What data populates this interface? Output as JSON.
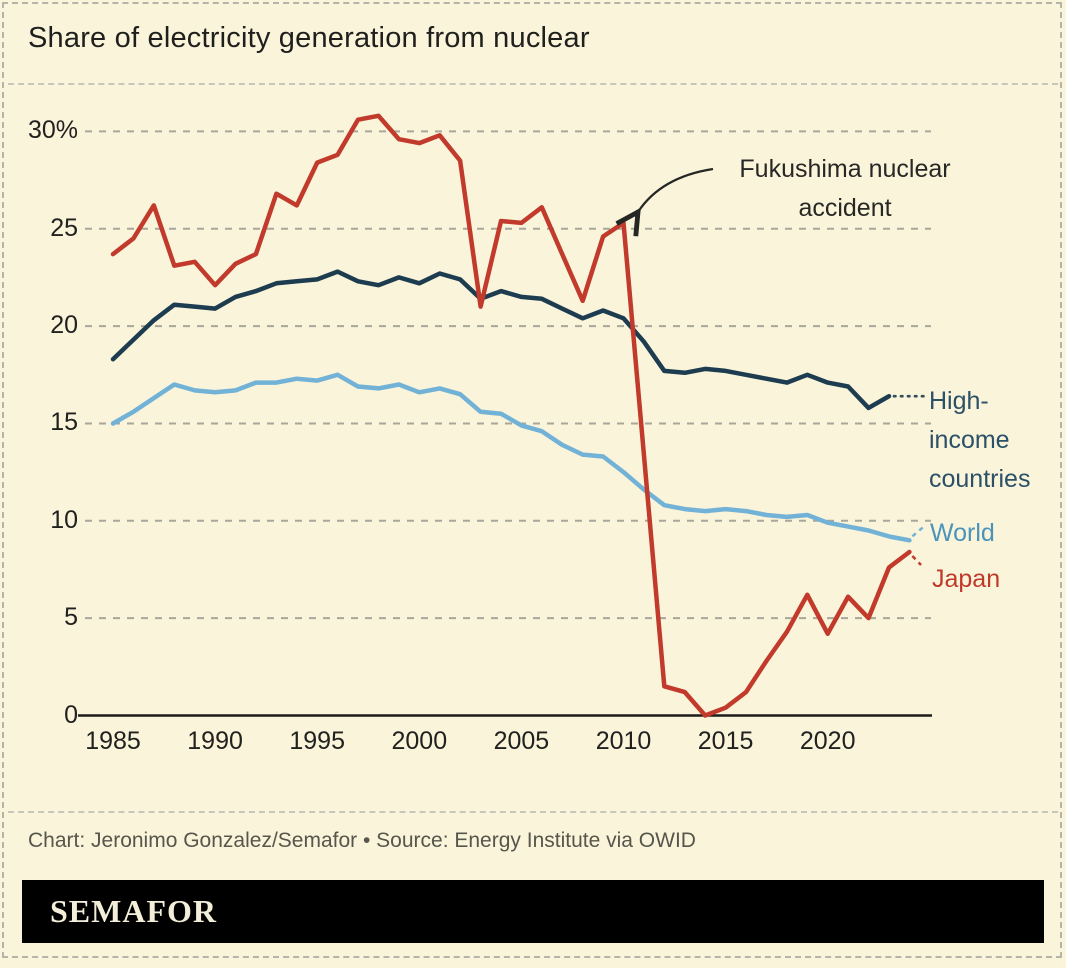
{
  "page": {
    "title": "Share of electricity generation from nuclear",
    "credit": "Chart: Jeronimo Gonzalez/Semafor • Source: Energy Institute via OWID",
    "logo_text": "SEMAFOR",
    "background_color": "#f9f4da",
    "logo_bar_color": "#000000"
  },
  "annotation": {
    "line1": "Fukushima nuclear",
    "line2": "accident"
  },
  "series_labels": {
    "high_income_line1": "High-",
    "high_income_line2": "income",
    "high_income_line3": "countries",
    "world": "World",
    "japan": "Japan"
  },
  "chart_data": {
    "type": "line",
    "title": "Share of electricity generation from nuclear",
    "xlabel": "",
    "ylabel": "",
    "xlim": [
      1985,
      2024.8
    ],
    "ylim": [
      0,
      31.8
    ],
    "grid": "horizontal-dashed",
    "legend_position": "right-of-line-ends",
    "x_ticks": [
      "1985",
      "1990",
      "1995",
      "2000",
      "2005",
      "2010",
      "2015",
      "2020"
    ],
    "y_ticks": [
      {
        "v": 0,
        "label": "0"
      },
      {
        "v": 5,
        "label": "5"
      },
      {
        "v": 10,
        "label": "10"
      },
      {
        "v": 15,
        "label": "15"
      },
      {
        "v": 20,
        "label": "20"
      },
      {
        "v": 25,
        "label": "25"
      },
      {
        "v": 30,
        "label": "30%"
      }
    ],
    "series": [
      {
        "name": "High-income countries",
        "color": "#1e3c4f",
        "start_year": 1985,
        "end_year": 2023,
        "values": [
          18.3,
          19.3,
          20.3,
          21.1,
          21.0,
          20.9,
          21.5,
          21.8,
          22.2,
          22.3,
          22.4,
          22.8,
          22.3,
          22.1,
          22.5,
          22.2,
          22.7,
          22.4,
          21.4,
          21.8,
          21.5,
          21.4,
          20.9,
          20.4,
          20.8,
          20.4,
          19.2,
          17.7,
          17.6,
          17.8,
          17.7,
          17.5,
          17.3,
          17.1,
          17.5,
          17.1,
          16.9,
          15.8,
          16.4
        ]
      },
      {
        "name": "World",
        "color": "#72b2d7",
        "start_year": 1985,
        "end_year": 2024,
        "values": [
          15.0,
          15.6,
          16.3,
          17.0,
          16.7,
          16.6,
          16.7,
          17.1,
          17.1,
          17.3,
          17.2,
          17.5,
          16.9,
          16.8,
          17.0,
          16.6,
          16.8,
          16.5,
          15.6,
          15.5,
          14.9,
          14.6,
          13.9,
          13.4,
          13.3,
          12.5,
          11.6,
          10.8,
          10.6,
          10.5,
          10.6,
          10.5,
          10.3,
          10.2,
          10.3,
          9.9,
          9.7,
          9.5,
          9.2,
          9.0
        ]
      },
      {
        "name": "Japan",
        "color": "#c13a2b",
        "start_year": 1985,
        "end_year": 2024,
        "values": [
          23.7,
          24.5,
          26.2,
          23.1,
          23.3,
          22.1,
          23.2,
          23.7,
          26.8,
          26.2,
          28.4,
          28.8,
          30.6,
          30.8,
          29.6,
          29.4,
          29.8,
          28.5,
          21.0,
          25.4,
          25.3,
          26.1,
          23.7,
          21.3,
          24.6,
          25.3,
          13.4,
          1.5,
          1.2,
          0.0,
          0.4,
          1.2,
          2.8,
          4.3,
          6.2,
          4.2,
          6.1,
          5.0,
          7.6,
          8.4
        ]
      }
    ],
    "annotation": {
      "text": "Fukushima nuclear accident",
      "target_year": 2010,
      "target_value": 25.3
    }
  }
}
